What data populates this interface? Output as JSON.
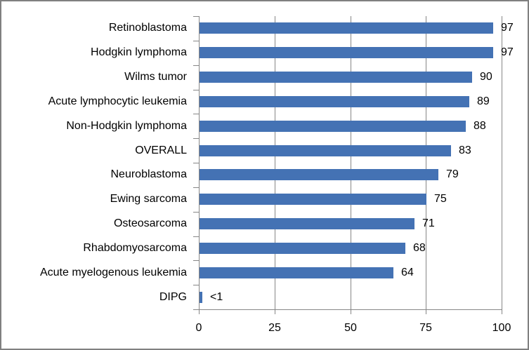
{
  "chart_data": {
    "type": "bar",
    "orientation": "horizontal",
    "title": "",
    "xlabel": "",
    "ylabel": "",
    "categories": [
      "Retinoblastoma",
      "Hodgkin lymphoma",
      "Wilms tumor",
      "Acute lymphocytic leukemia",
      "Non-Hodgkin lymphoma",
      "OVERALL",
      "Neuroblastoma",
      "Ewing sarcoma",
      "Osteosarcoma",
      "Rhabdomyosarcoma",
      "Acute myelogenous leukemia",
      "DIPG"
    ],
    "values": [
      97,
      97,
      90,
      89,
      88,
      83,
      79,
      75,
      71,
      68,
      64,
      0.9
    ],
    "value_labels": [
      "97",
      "97",
      "90",
      "89",
      "88",
      "83",
      "79",
      "75",
      "71",
      "68",
      "64",
      "<1"
    ],
    "xlim": [
      0,
      100
    ],
    "x_ticks": [
      0,
      25,
      50,
      75,
      100
    ],
    "x_tick_labels": [
      "0",
      "25",
      "50",
      "75",
      "100"
    ],
    "legend": "none",
    "grid": "vertical gridlines at x ticks",
    "data_label_position": "outside-end"
  },
  "colors": {
    "bar": "#4472B4",
    "axis": "#868686",
    "gridline": "#868686",
    "frame_border": "#808080",
    "text": "#000000",
    "background": "#FFFFFF"
  }
}
